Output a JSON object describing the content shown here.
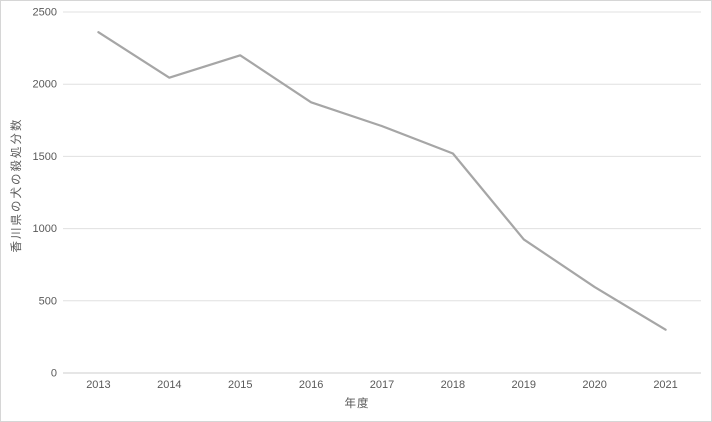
{
  "chart_data": {
    "type": "line",
    "title": "",
    "categories": [
      "2013",
      "2014",
      "2015",
      "2016",
      "2017",
      "2018",
      "2019",
      "2020",
      "2021"
    ],
    "values": [
      2360,
      2045,
      2200,
      1875,
      1710,
      1520,
      925,
      595,
      300
    ],
    "xlabel": "年度",
    "ylabel": "香川県の犬の殺処分数",
    "ylim": [
      0,
      2500
    ],
    "yticks": [
      0,
      500,
      1000,
      1500,
      2000,
      2500
    ],
    "grid": true,
    "legend": "none",
    "line_color": "#a6a6a6",
    "line_width": 2.2,
    "gridline_color": "#e0e0e0",
    "axis_line_color": "#cccccc",
    "tick_text_color": "#595959",
    "background_color": "#ffffff",
    "border_color": "#d6d6d6"
  }
}
